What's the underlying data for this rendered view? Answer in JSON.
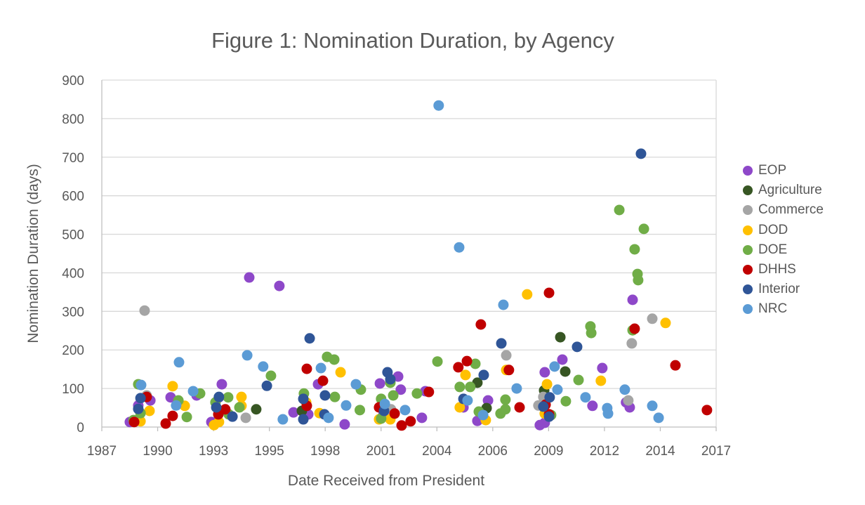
{
  "chart_data": {
    "type": "scatter",
    "title": "Figure 1: Nomination Duration, by Agency",
    "xlabel": "Date Received from President",
    "ylabel": "Nomination Duration (days)",
    "xlim": [
      1987,
      2017
    ],
    "ylim": [
      0,
      900
    ],
    "x_tick_labels": [
      "1987",
      "1990",
      "1993",
      "1995",
      "1998",
      "2001",
      "2004",
      "2006",
      "2009",
      "2012",
      "2014",
      "2017"
    ],
    "y_ticks": [
      0,
      100,
      200,
      300,
      400,
      500,
      600,
      700,
      800,
      900
    ],
    "grid": "horizontal",
    "legend_position": "right",
    "series": [
      {
        "name": "EOP",
        "color": "#8E48C9",
        "points": [
          [
            1988.37,
            13
          ],
          [
            1988.78,
            56
          ],
          [
            1989.37,
            69
          ],
          [
            1990.36,
            77
          ],
          [
            1991.63,
            82
          ],
          [
            1992.35,
            13
          ],
          [
            1992.72,
            77
          ],
          [
            1992.86,
            111
          ],
          [
            1994.2,
            388
          ],
          [
            1995.67,
            366
          ],
          [
            1996.36,
            38
          ],
          [
            1997.08,
            33
          ],
          [
            1997.56,
            111
          ],
          [
            1998.86,
            7
          ],
          [
            2000.58,
            113
          ],
          [
            2000.75,
            31
          ],
          [
            2001.47,
            131
          ],
          [
            2001.6,
            97
          ],
          [
            2002.63,
            24
          ],
          [
            2002.8,
            93
          ],
          [
            2004.66,
            51
          ],
          [
            2005.34,
            16
          ],
          [
            2005.86,
            69
          ],
          [
            2008.39,
            5
          ],
          [
            2008.63,
            11
          ],
          [
            2008.63,
            142
          ],
          [
            2009.49,
            175
          ],
          [
            2010.96,
            55
          ],
          [
            2011.44,
            153
          ],
          [
            2012.6,
            64
          ],
          [
            2012.78,
            51
          ],
          [
            2012.92,
            330
          ]
        ]
      },
      {
        "name": "Agriculture",
        "color": "#375623",
        "points": [
          [
            1994.54,
            46
          ],
          [
            1996.77,
            42
          ],
          [
            2005.34,
            115
          ],
          [
            2005.79,
            49
          ],
          [
            2008.6,
            95
          ],
          [
            2009.39,
            233
          ],
          [
            2009.63,
            144
          ]
        ]
      },
      {
        "name": "Commerce",
        "color": "#A5A5A5",
        "points": [
          [
            1989.09,
            302
          ],
          [
            1989.19,
            82
          ],
          [
            1994.03,
            24
          ],
          [
            2001.09,
            118
          ],
          [
            2001.12,
            46
          ],
          [
            2006.75,
            186
          ],
          [
            2008.32,
            56
          ],
          [
            2008.56,
            78
          ],
          [
            2012.71,
            69
          ],
          [
            2012.88,
            217
          ],
          [
            2013.88,
            281
          ]
        ]
      },
      {
        "name": "DOD",
        "color": "#FFC000",
        "points": [
          [
            1988.89,
            15
          ],
          [
            1989.33,
            42
          ],
          [
            1990.46,
            106
          ],
          [
            1991.05,
            55
          ],
          [
            1992.48,
            5
          ],
          [
            1992.72,
            13
          ],
          [
            1993.82,
            55
          ],
          [
            1993.82,
            78
          ],
          [
            1996.98,
            64
          ],
          [
            1997.63,
            36
          ],
          [
            1998.66,
            142
          ],
          [
            2000.54,
            20
          ],
          [
            2001.09,
            20
          ],
          [
            2004.48,
            51
          ],
          [
            2004.76,
            135
          ],
          [
            2005.75,
            18
          ],
          [
            2006.75,
            148
          ],
          [
            2007.77,
            344
          ],
          [
            2008.63,
            35
          ],
          [
            2008.74,
            111
          ],
          [
            2011.37,
            120
          ],
          [
            2014.53,
            270
          ]
        ]
      },
      {
        "name": "DOE",
        "color": "#70AD47",
        "points": [
          [
            1988.78,
            111
          ],
          [
            1988.55,
            18
          ],
          [
            1988.89,
            36
          ],
          [
            1990.74,
            69
          ],
          [
            1991.15,
            26
          ],
          [
            1991.8,
            87
          ],
          [
            1992.55,
            64
          ],
          [
            1993.2,
            33
          ],
          [
            1993.17,
            77
          ],
          [
            1993.72,
            51
          ],
          [
            1995.26,
            133
          ],
          [
            1996.87,
            87
          ],
          [
            1998.0,
            182
          ],
          [
            1998.35,
            175
          ],
          [
            1998.38,
            78
          ],
          [
            1999.65,
            97
          ],
          [
            1999.6,
            44
          ],
          [
            2000.64,
            22
          ],
          [
            2000.64,
            73
          ],
          [
            2001.09,
            115
          ],
          [
            2001.23,
            82
          ],
          [
            2002.39,
            87
          ],
          [
            2003.39,
            170
          ],
          [
            2004.48,
            104
          ],
          [
            2004.99,
            104
          ],
          [
            2005.24,
            164
          ],
          [
            2005.41,
            40
          ],
          [
            2006.47,
            35
          ],
          [
            2006.71,
            46
          ],
          [
            2006.71,
            71
          ],
          [
            2008.94,
            31
          ],
          [
            2009.66,
            67
          ],
          [
            2010.28,
            122
          ],
          [
            2010.86,
            261
          ],
          [
            2010.9,
            244
          ],
          [
            2012.27,
            563
          ],
          [
            2013.02,
            461
          ],
          [
            2013.47,
            514
          ],
          [
            2013.16,
            397
          ],
          [
            2013.19,
            381
          ],
          [
            2012.92,
            251
          ]
        ]
      },
      {
        "name": "DHHS",
        "color": "#C00000",
        "points": [
          [
            1988.58,
            13
          ],
          [
            1989.19,
            78
          ],
          [
            1990.12,
            9
          ],
          [
            1990.46,
            29
          ],
          [
            1992.69,
            33
          ],
          [
            1993.03,
            46
          ],
          [
            1997.01,
            151
          ],
          [
            1997.01,
            55
          ],
          [
            1997.8,
            120
          ],
          [
            2000.54,
            51
          ],
          [
            2001.3,
            35
          ],
          [
            2001.64,
            4
          ],
          [
            2002.08,
            15
          ],
          [
            2002.97,
            91
          ],
          [
            2004.41,
            155
          ],
          [
            2004.83,
            171
          ],
          [
            2005.51,
            266
          ],
          [
            2006.88,
            148
          ],
          [
            2007.4,
            51
          ],
          [
            2008.84,
            348
          ],
          [
            2008.84,
            33
          ],
          [
            2008.67,
            58
          ],
          [
            2013.02,
            255
          ],
          [
            2015.01,
            160
          ],
          [
            2016.55,
            44
          ]
        ]
      },
      {
        "name": "Interior",
        "color": "#2F5597",
        "points": [
          [
            1988.89,
            75
          ],
          [
            1988.78,
            47
          ],
          [
            1992.59,
            51
          ],
          [
            1992.72,
            78
          ],
          [
            1993.38,
            27
          ],
          [
            1995.06,
            107
          ],
          [
            1996.84,
            73
          ],
          [
            1996.84,
            20
          ],
          [
            1997.15,
            230
          ],
          [
            1997.87,
            33
          ],
          [
            1997.9,
            82
          ],
          [
            2000.78,
            42
          ],
          [
            2000.95,
            142
          ],
          [
            2001.09,
            124
          ],
          [
            2004.66,
            73
          ],
          [
            2005.65,
            135
          ],
          [
            2006.51,
            217
          ],
          [
            2008.87,
            77
          ],
          [
            2008.56,
            53
          ],
          [
            2008.84,
            27
          ],
          [
            2010.21,
            208
          ],
          [
            2013.33,
            709
          ]
        ]
      },
      {
        "name": "NRC",
        "color": "#5B9BD5",
        "points": [
          [
            1988.92,
            109
          ],
          [
            1990.77,
            168
          ],
          [
            1990.63,
            56
          ],
          [
            1991.46,
            93
          ],
          [
            1994.1,
            186
          ],
          [
            1994.88,
            157
          ],
          [
            1995.84,
            20
          ],
          [
            1997.7,
            153
          ],
          [
            1998.07,
            24
          ],
          [
            1998.93,
            56
          ],
          [
            1999.41,
            111
          ],
          [
            2000.82,
            60
          ],
          [
            2001.81,
            44
          ],
          [
            2003.45,
            834
          ],
          [
            2004.45,
            466
          ],
          [
            2004.86,
            69
          ],
          [
            2005.62,
            31
          ],
          [
            2006.61,
            317
          ],
          [
            2007.26,
            100
          ],
          [
            2009.11,
            157
          ],
          [
            2009.25,
            97
          ],
          [
            2010.62,
            77
          ],
          [
            2011.68,
            49
          ],
          [
            2011.72,
            35
          ],
          [
            2012.54,
            97
          ],
          [
            2013.88,
            55
          ],
          [
            2014.19,
            24
          ]
        ]
      }
    ]
  }
}
